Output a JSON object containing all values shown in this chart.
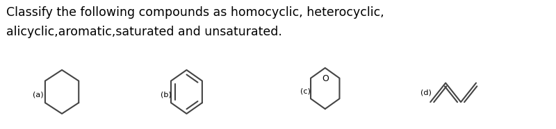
{
  "title_line1": "Classify the following compounds as homocyclic, heterocyclic,",
  "title_line2": "alicyclic,aromatic,saturated and unsaturated.",
  "background_color": "#ffffff",
  "text_color": "#000000",
  "title_fontsize": 12.5,
  "label_fontsize": 8,
  "line_color": "#444444",
  "line_width": 1.5,
  "labels": [
    "(a)",
    "(b)",
    "(c)",
    "(d)"
  ],
  "fig_width": 8.0,
  "fig_height": 1.86,
  "dpi": 100
}
